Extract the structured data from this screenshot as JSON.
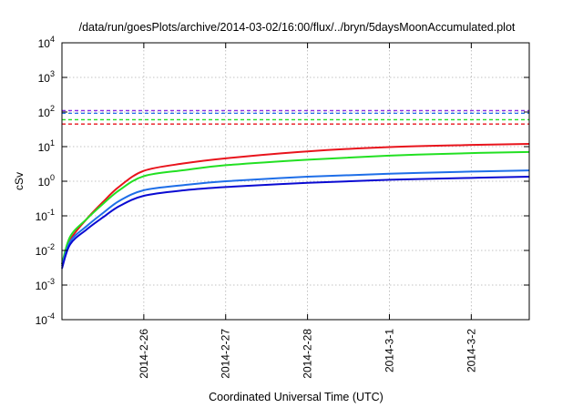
{
  "chart_data": {
    "type": "line",
    "title": "/data/run/goesPlots/archive/2014-03-02/16:00/flux/../bryn/5daysMoonAccumulated.plot",
    "xlabel": "Coordinated Universal Time (UTC)",
    "ylabel": "cSv",
    "yscale": "log",
    "ylim": [
      0.0001,
      10000
    ],
    "xlim": [
      "2014-02-25 00:00",
      "2014-03-02 17:00"
    ],
    "grid": true,
    "xticks": [
      "2014-2-26",
      "2014-2-27",
      "2014-2-28",
      "2014-3-1",
      "2014-3-2"
    ],
    "yticks": [
      {
        "value": 0.0001,
        "base": "10",
        "exp": "-4"
      },
      {
        "value": 0.001,
        "base": "10",
        "exp": "-3"
      },
      {
        "value": 0.01,
        "base": "10",
        "exp": "-2"
      },
      {
        "value": 0.1,
        "base": "10",
        "exp": "-1"
      },
      {
        "value": 1,
        "base": "10",
        "exp": "0"
      },
      {
        "value": 10,
        "base": "10",
        "exp": "1"
      },
      {
        "value": 100,
        "base": "10",
        "exp": "2"
      },
      {
        "value": 1000,
        "base": "10",
        "exp": "3"
      },
      {
        "value": 10000,
        "base": "10",
        "exp": "4"
      }
    ],
    "series": [
      {
        "color": "#e8141c",
        "x": [
          "2014-02-25 00:00",
          "2014-02-25 02:24",
          "2014-02-25 07:12",
          "2014-02-25 12:00",
          "2014-02-25 16:48",
          "2014-02-26 00:00",
          "2014-02-26 12:00",
          "2014-02-27 00:00",
          "2014-02-28 00:00",
          "2014-03-01 00:00",
          "2014-03-02 00:00",
          "2014-03-02 17:00"
        ],
        "values": [
          0.004,
          0.02,
          0.08,
          0.25,
          0.7,
          2.0,
          3.3,
          4.6,
          7.3,
          9.7,
          11.2,
          12.0
        ]
      },
      {
        "color": "#22e022",
        "x": [
          "2014-02-25 00:00",
          "2014-02-25 02:24",
          "2014-02-25 07:12",
          "2014-02-25 12:00",
          "2014-02-25 16:48",
          "2014-02-26 00:00",
          "2014-02-26 12:00",
          "2014-02-27 00:00",
          "2014-02-28 00:00",
          "2014-03-01 00:00",
          "2014-03-02 00:00",
          "2014-03-02 17:00"
        ],
        "values": [
          0.004,
          0.025,
          0.08,
          0.22,
          0.55,
          1.4,
          2.1,
          2.9,
          4.2,
          5.5,
          6.5,
          7.0
        ]
      },
      {
        "color": "#1e6ee8",
        "x": [
          "2014-02-25 00:00",
          "2014-02-25 02:24",
          "2014-02-25 07:12",
          "2014-02-25 12:00",
          "2014-02-25 16:48",
          "2014-02-26 00:00",
          "2014-02-26 12:00",
          "2014-02-27 00:00",
          "2014-02-28 00:00",
          "2014-03-01 00:00",
          "2014-03-02 00:00",
          "2014-03-02 17:00"
        ],
        "values": [
          0.0035,
          0.018,
          0.05,
          0.12,
          0.27,
          0.55,
          0.78,
          1.0,
          1.35,
          1.65,
          1.9,
          2.05
        ]
      },
      {
        "color": "#0a0ad2",
        "x": [
          "2014-02-25 00:00",
          "2014-02-25 02:24",
          "2014-02-25 07:12",
          "2014-02-25 12:00",
          "2014-02-25 16:48",
          "2014-02-26 00:00",
          "2014-02-26 12:00",
          "2014-02-27 00:00",
          "2014-02-28 00:00",
          "2014-03-01 00:00",
          "2014-03-02 00:00",
          "2014-03-02 17:00"
        ],
        "values": [
          0.003,
          0.015,
          0.04,
          0.09,
          0.19,
          0.38,
          0.55,
          0.68,
          0.9,
          1.1,
          1.25,
          1.35
        ]
      }
    ],
    "thresholds": [
      {
        "color": "#8a2be2",
        "value": 110
      },
      {
        "color": "#1e6ee8",
        "value": 92
      },
      {
        "color": "#22e022",
        "value": 60
      },
      {
        "color": "#e8141c",
        "value": 45
      }
    ]
  }
}
